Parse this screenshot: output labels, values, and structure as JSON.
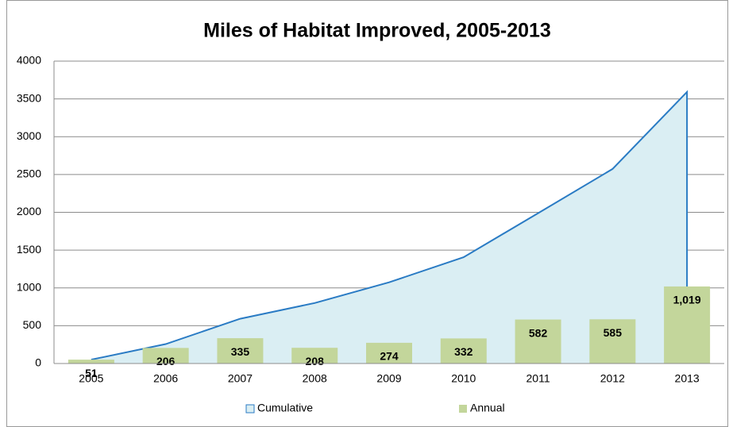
{
  "chart_data": {
    "type": "bar",
    "title": "Miles of Habitat Improved, 2005-2013",
    "categories": [
      "2005",
      "2006",
      "2007",
      "2008",
      "2009",
      "2010",
      "2011",
      "2012",
      "2013"
    ],
    "series": [
      {
        "name": "Cumulative",
        "type": "area",
        "color": "#2a7bc4",
        "fill": "#daeef3",
        "values": [
          51,
          257,
          592,
          800,
          1074,
          1406,
          1988,
          2573,
          3592
        ]
      },
      {
        "name": "Annual",
        "type": "bar",
        "color": "#c3d69b",
        "values": [
          51,
          206,
          335,
          208,
          274,
          332,
          582,
          585,
          1019
        ],
        "value_labels": [
          "51",
          "206",
          "335",
          "208",
          "274",
          "332",
          "582",
          "585",
          "1,019"
        ]
      }
    ],
    "ylim": [
      0,
      4000
    ],
    "yticks": [
      0,
      500,
      1000,
      1500,
      2000,
      2500,
      3000,
      3500,
      4000
    ],
    "grid": true
  }
}
